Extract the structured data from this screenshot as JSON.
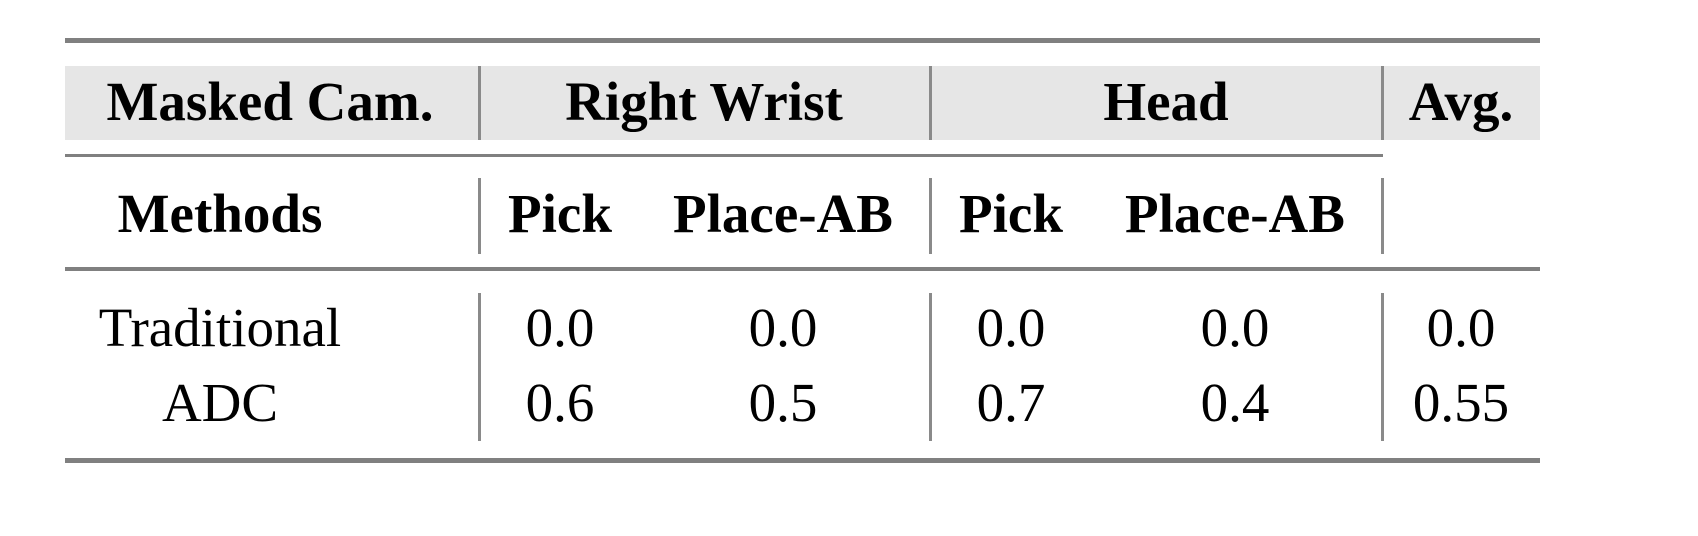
{
  "table": {
    "header_row1": {
      "masked_cam": "Masked Cam.",
      "right_wrist": "Right Wrist",
      "head": "Head",
      "avg": "Avg."
    },
    "header_row2": {
      "methods": "Methods",
      "columns": [
        "Pick",
        "Place-AB",
        "Pick",
        "Place-AB"
      ]
    },
    "rows": [
      {
        "method": "Traditional",
        "values": [
          "0.0",
          "0.0",
          "0.0",
          "0.0"
        ],
        "avg": "0.0"
      },
      {
        "method": "ADC",
        "values": [
          "0.6",
          "0.5",
          "0.7",
          "0.4"
        ],
        "avg": "0.55"
      }
    ],
    "colors": {
      "header_bg": "#e6e6e6",
      "rules": "#808080"
    }
  }
}
